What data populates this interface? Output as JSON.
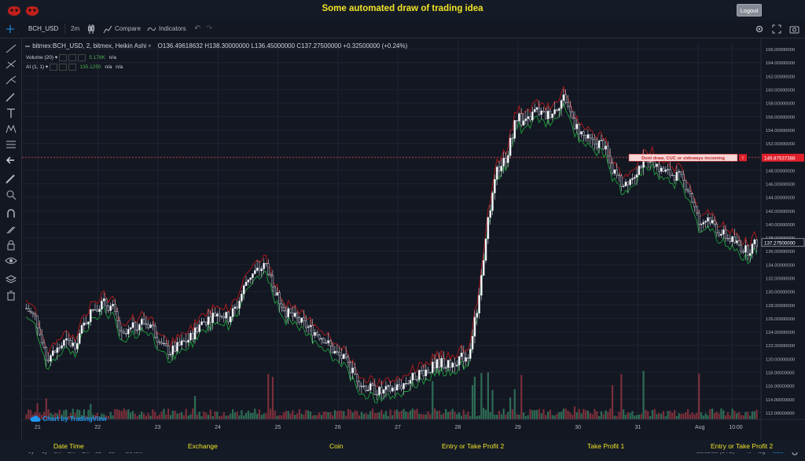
{
  "app": {
    "title": "Some automated draw of trading idea",
    "logout_label": "Logout"
  },
  "toolbar": {
    "symbol": "BCH_USD",
    "interval": "2m",
    "compare_label": "Compare",
    "indicators_label": "Indicators"
  },
  "legend": {
    "main": "bitmex:BCH_USD, 2, bitmex, Heikin Ashi",
    "ohlc": "O136.49618632  H138.30000000  L136.45000000  C137.27500000  +0.32500000 (+0.24%)",
    "volume_label": "Volume (20)",
    "volume_value": "5.178K",
    "volume_na": "n/a",
    "ai_label": "AI (1, 1)",
    "ai_value": "135.1250",
    "ai_na1": "n/a",
    "ai_na2": "n/a"
  },
  "watermark": "Chart by TradingView",
  "annotation": {
    "text": "Dont draw, CUC or sideways incoming",
    "flag": "!"
  },
  "bottombar": {
    "ranges": [
      "5y",
      "1y",
      "6m",
      "3m",
      "1m",
      "5d",
      "1d"
    ],
    "goto": "Go to...",
    "time": "21:52:58 (UTC)",
    "percent": "%",
    "log": "log",
    "auto": "auto"
  },
  "footer": {
    "labels": [
      "Date Time",
      "Exchange",
      "Coin",
      "Entry or Take Profit 2",
      "Take Profit 1",
      "Entry or Take Profit 2"
    ]
  },
  "colors": {
    "up": "#4caf50",
    "down": "#e04040",
    "accent": "#f1e427"
  },
  "chart_data": {
    "type": "candlestick",
    "xlabel": "",
    "ylabel": "",
    "ylim": [
      111,
      167
    ],
    "yticks": [
      112,
      114,
      116,
      118,
      120,
      122,
      124,
      126,
      128,
      130,
      132,
      134,
      136,
      138,
      140,
      142,
      144,
      146,
      148,
      150,
      152,
      154,
      156,
      158,
      160,
      162,
      164,
      166
    ],
    "ytick_labels": [
      "112.00000000",
      "114.00000000",
      "116.00000000",
      "118.00000000",
      "120.00000000",
      "122.00000000",
      "124.00000000",
      "126.00000000",
      "128.00000000",
      "130.00000000",
      "132.00000000",
      "134.00000000",
      "136.00000000",
      "138.00000000",
      "140.00000000",
      "142.00000000",
      "144.00000000",
      "146.00000000",
      "148.00000000",
      "150.00000000",
      "152.00000000",
      "154.00000000",
      "156.00000000",
      "158.00000000",
      "160.00000000",
      "162.00000000",
      "164.00000000",
      "166.00000000"
    ],
    "xticks": [
      "21",
      "22",
      "23",
      "24",
      "25",
      "26",
      "27",
      "28",
      "29",
      "30",
      "31",
      "Aug",
      "10:00"
    ],
    "xtick_pos": [
      0.0,
      0.083,
      0.166,
      0.249,
      0.332,
      0.415,
      0.498,
      0.581,
      0.664,
      0.747,
      0.83,
      0.913,
      0.96
    ],
    "price_path": [
      127.5,
      126,
      120,
      121,
      122.5,
      122,
      125,
      127.5,
      128.3,
      127.5,
      123,
      124.5,
      125.5,
      125,
      122,
      121,
      122,
      123,
      125,
      126,
      127,
      126,
      128,
      132,
      133,
      134,
      129.5,
      127,
      126,
      125,
      124,
      123,
      121,
      120,
      118,
      116,
      115.5,
      115,
      115.5,
      116,
      117,
      118,
      118.5,
      119.5,
      119,
      120,
      120.5,
      128,
      140,
      148,
      150,
      156,
      155,
      157,
      156,
      157,
      159,
      155,
      153,
      152,
      152,
      148,
      146,
      147,
      149,
      150,
      148,
      147.5,
      147,
      145,
      140,
      141,
      139,
      138,
      137,
      136,
      137.3
    ],
    "horizontal_line": 149.87537388,
    "horizontal_line_label": "149.87537388",
    "last_price": 137.275,
    "last_price_label": "137.27500000"
  }
}
